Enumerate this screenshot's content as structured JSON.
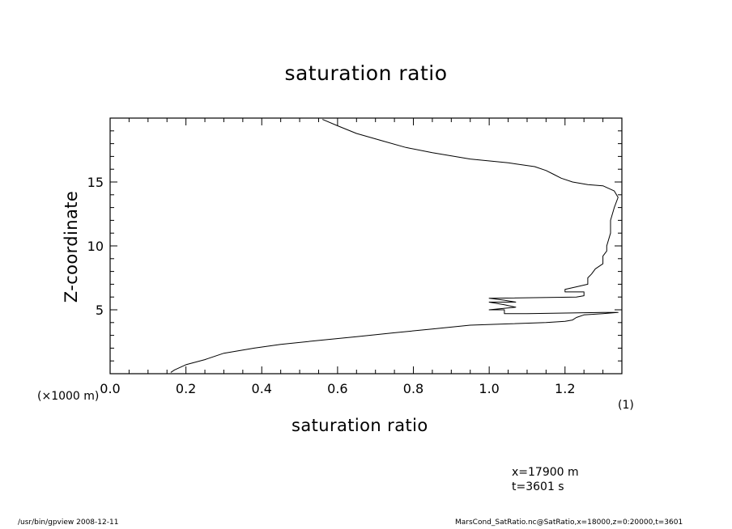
{
  "chart_data": {
    "type": "line",
    "title": "saturation ratio",
    "xlabel": "saturation ratio",
    "ylabel": "Z-coordinate",
    "y_unit_label": "(x1000 m)",
    "x_unit_label": "(1)",
    "xlim": [
      0.0,
      1.35
    ],
    "ylim": [
      0,
      20
    ],
    "x_ticks": [
      "0.0",
      "0.2",
      "0.4",
      "0.6",
      "0.8",
      "1.0",
      "1.2"
    ],
    "y_ticks": [
      "5",
      "10",
      "15"
    ],
    "grid": false,
    "series": [
      {
        "x": [
          0.16,
          0.17,
          0.2,
          0.25,
          0.3,
          0.38,
          0.45,
          0.55,
          0.65,
          0.75,
          0.85,
          0.95,
          1.05,
          1.15,
          1.2,
          1.22,
          1.23,
          1.25,
          1.3,
          1.34,
          1.3,
          1.22,
          1.1,
          1.04,
          1.04,
          1.0,
          1.07,
          1.04,
          1.0,
          1.07,
          1.04,
          1.0,
          1.23,
          1.25,
          1.25,
          1.2,
          1.2,
          1.23,
          1.26,
          1.26,
          1.27,
          1.28,
          1.3,
          1.3,
          1.31,
          1.31,
          1.32,
          1.32,
          1.33,
          1.34,
          1.33,
          1.3,
          1.26,
          1.24,
          1.22,
          1.19,
          1.17,
          1.15,
          1.12,
          1.05,
          0.95,
          0.85,
          0.78,
          0.72,
          0.65,
          0.6,
          0.56
        ],
        "y": [
          0.1,
          0.3,
          0.7,
          1.1,
          1.6,
          2.0,
          2.3,
          2.6,
          2.9,
          3.2,
          3.5,
          3.8,
          3.9,
          4.0,
          4.1,
          4.2,
          4.4,
          4.6,
          4.7,
          4.8,
          4.8,
          4.75,
          4.7,
          4.7,
          5.0,
          5.0,
          5.2,
          5.4,
          5.6,
          5.6,
          5.75,
          5.9,
          6.0,
          6.1,
          6.4,
          6.4,
          6.6,
          6.8,
          7.0,
          7.5,
          7.8,
          8.2,
          8.6,
          9.2,
          9.6,
          10.0,
          11.0,
          12.0,
          13.0,
          13.8,
          14.3,
          14.7,
          14.8,
          14.9,
          15.0,
          15.3,
          15.6,
          15.9,
          16.2,
          16.5,
          16.8,
          17.3,
          17.7,
          18.2,
          18.8,
          19.4,
          19.9
        ]
      }
    ]
  },
  "labels": {
    "y_unit": "(×1000 m)",
    "x_unit": "(1)",
    "info_x": "x=17900  m",
    "info_t": "t=3601  s",
    "footer_left": "/usr/bin/gpview   2008-12-11",
    "footer_right": "MarsCond_SatRatio.nc@SatRatio,x=18000,z=0:20000,t=3601"
  }
}
